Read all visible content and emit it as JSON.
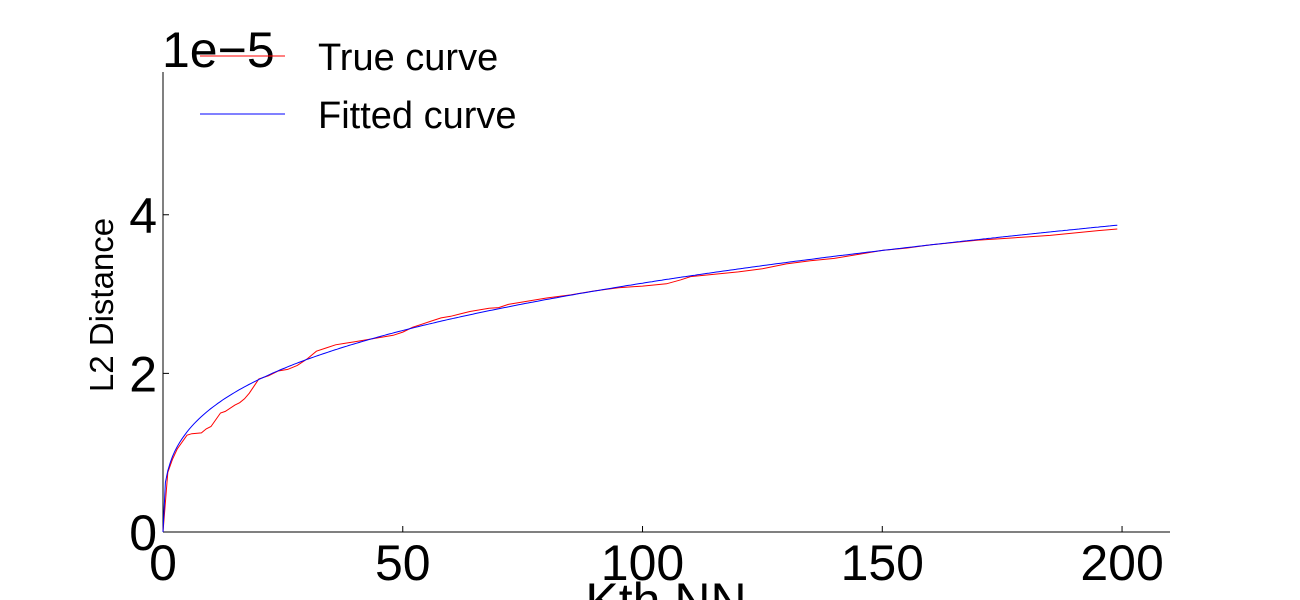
{
  "chart_data": {
    "type": "line",
    "title": "",
    "xlabel": "Kth NN",
    "ylabel": "L2 Distance",
    "scale_label": "1e−5",
    "xlim": [
      0,
      210
    ],
    "ylim": [
      0,
      5.8
    ],
    "xticks": [
      0,
      50,
      100,
      150,
      200
    ],
    "yticks": [
      0,
      2,
      4
    ],
    "x_tick_labels": [
      "0",
      "50",
      "100",
      "150",
      "200"
    ],
    "y_tick_labels": [
      "0",
      "2",
      "4"
    ],
    "grid": false,
    "legend_position": "top-left",
    "series": [
      {
        "name": "True curve",
        "color": "#ff0000",
        "x": [
          0,
          1,
          2,
          3,
          5,
          6,
          8,
          9,
          10,
          12,
          13,
          15,
          16,
          17,
          18,
          20,
          22,
          24,
          26,
          28,
          30,
          32,
          34,
          36,
          38,
          40,
          42,
          44,
          46,
          48,
          50,
          52,
          54,
          56,
          58,
          60,
          62,
          64,
          66,
          68,
          70,
          72,
          75,
          80,
          85,
          90,
          95,
          100,
          105,
          108,
          110,
          115,
          120,
          125,
          130,
          135,
          140,
          145,
          150,
          155,
          160,
          165,
          170,
          175,
          180,
          185,
          190,
          195,
          199
        ],
        "values": [
          0.0,
          0.75,
          0.92,
          1.05,
          1.22,
          1.24,
          1.25,
          1.3,
          1.33,
          1.5,
          1.52,
          1.6,
          1.63,
          1.68,
          1.75,
          1.93,
          1.97,
          2.03,
          2.05,
          2.1,
          2.18,
          2.28,
          2.32,
          2.36,
          2.38,
          2.4,
          2.42,
          2.44,
          2.46,
          2.48,
          2.52,
          2.58,
          2.62,
          2.66,
          2.7,
          2.72,
          2.75,
          2.78,
          2.8,
          2.82,
          2.83,
          2.87,
          2.9,
          2.95,
          2.99,
          3.04,
          3.08,
          3.1,
          3.13,
          3.18,
          3.22,
          3.25,
          3.28,
          3.32,
          3.38,
          3.42,
          3.45,
          3.5,
          3.55,
          3.58,
          3.62,
          3.65,
          3.68,
          3.7,
          3.72,
          3.74,
          3.77,
          3.8,
          3.82
        ]
      },
      {
        "name": "Fitted curve",
        "color": "#0000ff",
        "fit_amplitude": 0.7727,
        "fit_exponent": 0.3043,
        "x_max": 199
      }
    ]
  }
}
